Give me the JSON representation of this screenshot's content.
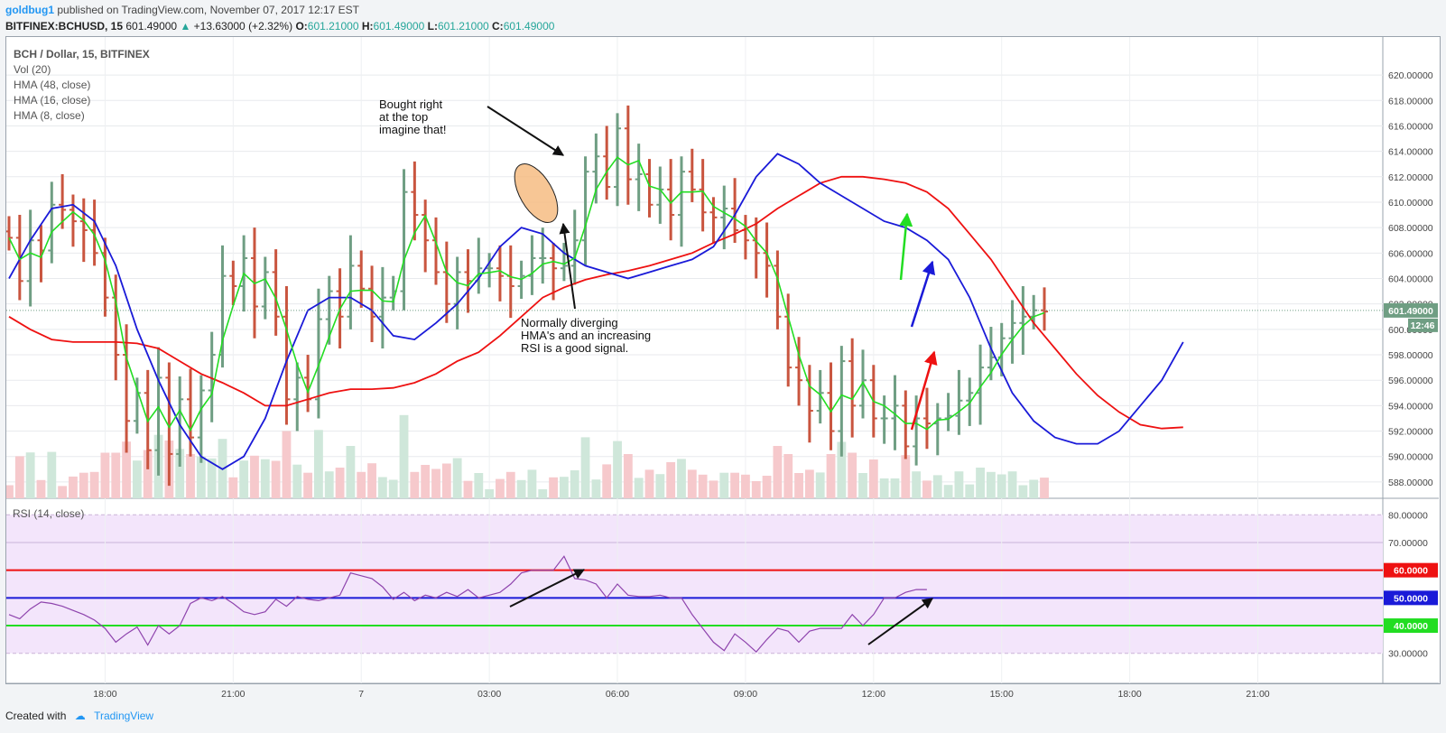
{
  "header": {
    "author": "goldbug1",
    "published_text": "published on TradingView.com, November 07, 2017 12:17 EST",
    "symbol": "BITFINEX:BCHUSD, 15",
    "last": "601.49000",
    "change": "+13.63000 (+2.32%)",
    "o_label": "O:",
    "o_value": "601.21000",
    "h_label": "H:",
    "h_value": "601.49000",
    "l_label": "L:",
    "l_value": "601.21000",
    "c_label": "C:",
    "c_value": "601.49000"
  },
  "footer": {
    "created_with": "Created with",
    "brand": "TradingView"
  },
  "colors": {
    "up": "#6f9e83",
    "down": "#c9553f",
    "hma48": "#ee1111",
    "hma16": "#1a1ad8",
    "hma8": "#22dd22",
    "rsi_bg": "#f3e5fb",
    "rsi_line": "#8e44ad"
  },
  "chart_data": [
    {
      "type": "candlestick",
      "title": "BCH / Dollar, 15, BITFINEX",
      "legend": [
        "Vol (20)",
        "HMA (48, close)",
        "HMA (16, close)",
        "HMA (8, close)"
      ],
      "ylim": [
        587,
        621
      ],
      "y_ticks": [
        "588.00000",
        "590.00000",
        "592.00000",
        "594.00000",
        "596.00000",
        "598.00000",
        "600.00000",
        "602.00000",
        "604.00000",
        "606.00000",
        "608.00000",
        "610.00000",
        "612.00000",
        "614.00000",
        "616.00000",
        "618.00000",
        "620.00000"
      ],
      "x_ticks": [
        "18:00",
        "21:00",
        "7",
        "03:00",
        "06:00",
        "09:00",
        "12:00",
        "15:00",
        "18:00",
        "21:00"
      ],
      "x_tick_times": [
        2.25,
        5.25,
        8.25,
        11.25,
        14.25,
        17.25,
        20.25,
        23.25,
        26.25,
        29.25
      ],
      "current_price_label": "601.49000",
      "countdown_label": "12:46",
      "close": [
        607.2,
        603.8,
        607.0,
        606.2,
        609.8,
        609.4,
        608.5,
        607.8,
        606.0,
        602.5,
        598.0,
        592.8,
        595.0,
        590.5,
        596.2,
        590.2,
        594.5,
        591.5,
        595.2,
        598.0,
        604.2,
        603.4,
        605.6,
        601.8,
        604.5,
        601.0,
        594.5,
        596.2,
        594.5,
        600.8,
        603.0,
        601.0,
        605.0,
        603.2,
        601.0,
        602.5,
        603.0,
        610.8,
        609.0,
        607.0,
        604.5,
        602.0,
        604.5,
        603.8,
        604.8,
        604.8,
        604.2,
        603.4,
        604.2,
        605.6,
        605.6,
        604.8,
        605.0,
        607.0,
        612.4,
        613.6,
        611.2,
        615.8,
        611.8,
        612.2,
        609.8,
        611.0,
        609.0,
        612.4,
        611.0,
        609.2,
        608.8,
        609.5,
        607.8,
        607.0,
        606.0,
        605.0,
        601.0,
        597.0,
        596.0,
        593.6,
        595.0,
        592.0,
        597.5,
        594.0,
        596.0,
        593.0,
        593.0,
        594.0,
        590.8,
        593.0,
        592.6,
        593.0,
        593.2,
        594.4,
        595.0,
        597.0,
        597.8,
        599.3,
        600.5,
        601.0,
        601.5,
        601.4
      ],
      "hma48": [
        601,
        600,
        599.2,
        599,
        599,
        599,
        598.9,
        598.5,
        597.5,
        596.5,
        595.8,
        595,
        594,
        594,
        594.5,
        595,
        595.3,
        595.3,
        595.4,
        595.8,
        596.5,
        597.5,
        598.2,
        599.5,
        601,
        602.5,
        603.3,
        603.9,
        604.3,
        604.6,
        605,
        605.5,
        606,
        606.8,
        607.5,
        608.3,
        609.5,
        610.5,
        611.5,
        612,
        612,
        611.8,
        611.5,
        610.8,
        609.5,
        607.5,
        605.5,
        603,
        600.5,
        598.5,
        596.5,
        594.8,
        593.5,
        592.5,
        592.2,
        592.3
      ],
      "hma16": [
        604,
        607,
        609.5,
        609.8,
        608.5,
        605,
        600,
        596,
        592.5,
        590,
        589,
        590,
        593,
        597.5,
        601.5,
        602.5,
        602.5,
        601.5,
        599.5,
        599.2,
        600.5,
        602,
        604,
        606.5,
        608,
        607.5,
        606,
        605,
        604.5,
        604,
        604.5,
        605,
        605.5,
        606.5,
        609,
        612,
        613.8,
        613,
        611.5,
        610.5,
        609.5,
        608.5,
        608,
        607,
        605.5,
        602.5,
        598.5,
        595,
        592.8,
        591.5,
        591,
        591,
        592,
        594,
        596,
        599
      ]
    },
    {
      "type": "line",
      "title": "RSI (14, close)",
      "ylim": [
        26,
        84
      ],
      "y_ticks": [
        "30.00000",
        "40.00000",
        "50.00000",
        "60.00000",
        "70.00000",
        "80.00000"
      ],
      "levels": [
        {
          "value": 60,
          "label": "60.0000",
          "color": "#ee1111"
        },
        {
          "value": 50,
          "label": "50.0000",
          "color": "#1a1ad8"
        },
        {
          "value": 40,
          "label": "40.0000",
          "color": "#22dd22"
        }
      ],
      "values": [
        44,
        42.5,
        46,
        48.5,
        48,
        47,
        45.5,
        44,
        42,
        39,
        34,
        37,
        39.5,
        33,
        40,
        37,
        40,
        48,
        50,
        49,
        50.5,
        48,
        45,
        44,
        45,
        49.5,
        47,
        50.5,
        49.5,
        49,
        50,
        51,
        59,
        58,
        57,
        54,
        49.5,
        52,
        49,
        51,
        50,
        52,
        50.5,
        53,
        50,
        51,
        52,
        55,
        59,
        60,
        60,
        60,
        65,
        57,
        56.5,
        55,
        50,
        55,
        51,
        50.5,
        50.5,
        51,
        50,
        50,
        44,
        39,
        34,
        31,
        37,
        34,
        30.5,
        35,
        39,
        38,
        34,
        38,
        39,
        39,
        39,
        44,
        40,
        44,
        50,
        50,
        52,
        53,
        53
      ]
    }
  ],
  "annotations": {
    "note1": [
      "Bought right",
      "at the top",
      "imagine that!"
    ],
    "note2": [
      "Normally diverging",
      "HMA's and an increasing",
      "RSI is a good signal."
    ]
  }
}
